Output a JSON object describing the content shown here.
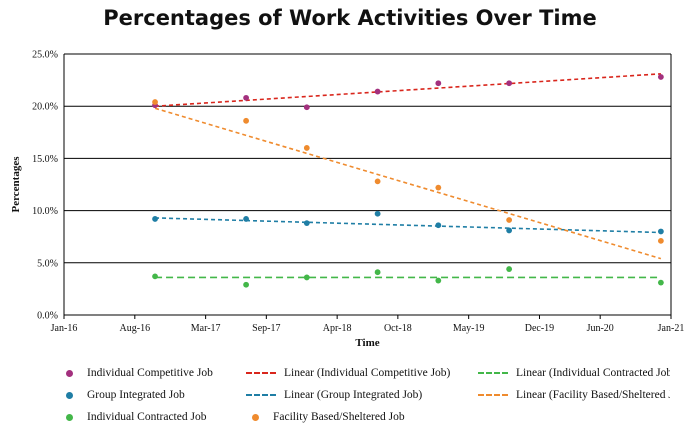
{
  "chart_data": {
    "type": "scatter",
    "title": "Percentages of Work Activities Over Time",
    "xlabel": "Time",
    "ylabel": "Percentages",
    "x_ticks": [
      "Jan-16",
      "Aug-16",
      "Mar-17",
      "Sep-17",
      "Apr-18",
      "Oct-18",
      "May-19",
      "Dec-19",
      "Jun-20",
      "Jan-21"
    ],
    "x_tick_months": [
      0,
      7,
      14,
      20,
      27,
      33,
      40,
      47,
      53,
      60
    ],
    "ylim": [
      0,
      25
    ],
    "y_ticks": [
      "0.0%",
      "5.0%",
      "10.0%",
      "15.0%",
      "20.0%",
      "25.0%"
    ],
    "y_tick_values": [
      0,
      5,
      10,
      15,
      20,
      25
    ],
    "grid": "horizontal",
    "legend_position": "bottom",
    "series": [
      {
        "name": "Individual Competitive Job",
        "color": "#a3307e",
        "points": [
          {
            "x": "Oct-16",
            "y": 20.1
          },
          {
            "x": "Jul-17",
            "y": 20.8
          },
          {
            "x": "Jan-18",
            "y": 19.9
          },
          {
            "x": "Aug-18",
            "y": 21.4
          },
          {
            "x": "Feb-19",
            "y": 22.2
          },
          {
            "x": "Sep-19",
            "y": 22.2
          },
          {
            "x": "Dec-20",
            "y": 22.8
          }
        ]
      },
      {
        "name": "Group Integrated Job",
        "color": "#1f7ea5",
        "points": [
          {
            "x": "Oct-16",
            "y": 9.2
          },
          {
            "x": "Jul-17",
            "y": 9.2
          },
          {
            "x": "Jan-18",
            "y": 8.8
          },
          {
            "x": "Aug-18",
            "y": 9.7
          },
          {
            "x": "Feb-19",
            "y": 8.6
          },
          {
            "x": "Sep-19",
            "y": 8.1
          },
          {
            "x": "Dec-20",
            "y": 8.0
          }
        ]
      },
      {
        "name": "Individual Contracted Job",
        "color": "#43b749",
        "points": [
          {
            "x": "Oct-16",
            "y": 3.7
          },
          {
            "x": "Jul-17",
            "y": 2.9
          },
          {
            "x": "Jan-18",
            "y": 3.6
          },
          {
            "x": "Aug-18",
            "y": 4.1
          },
          {
            "x": "Feb-19",
            "y": 3.3
          },
          {
            "x": "Sep-19",
            "y": 4.4
          },
          {
            "x": "Dec-20",
            "y": 3.1
          }
        ]
      },
      {
        "name": "Facility Based/Sheltered Job",
        "color": "#ef8b2e",
        "points": [
          {
            "x": "Oct-16",
            "y": 20.4
          },
          {
            "x": "Jul-17",
            "y": 18.6
          },
          {
            "x": "Jan-18",
            "y": 16.0
          },
          {
            "x": "Aug-18",
            "y": 12.8
          },
          {
            "x": "Feb-19",
            "y": 12.2
          },
          {
            "x": "Sep-19",
            "y": 9.1
          },
          {
            "x": "Dec-20",
            "y": 7.1
          }
        ]
      }
    ],
    "trendlines": [
      {
        "name": "Linear (Individual Competitive Job)",
        "color": "#d9261c",
        "x": [
          "Oct-16",
          "Dec-20"
        ],
        "y": [
          20.0,
          23.1
        ]
      },
      {
        "name": "Linear (Group Integrated Job)",
        "color": "#1f7ea5",
        "x": [
          "Oct-16",
          "Dec-20"
        ],
        "y": [
          9.3,
          7.9
        ]
      },
      {
        "name": "Linear (Individual Contracted Job)",
        "color": "#43b749",
        "x": [
          "Oct-16",
          "Dec-20"
        ],
        "y": [
          3.6,
          3.6
        ]
      },
      {
        "name": "Linear (Facility Based/Sheltered Job)",
        "color": "#ef8b2e",
        "x": [
          "Oct-16",
          "Dec-20"
        ],
        "y": [
          19.8,
          5.4
        ]
      }
    ]
  },
  "legend": {
    "items": [
      {
        "label": "Individual Competitive Job",
        "kind": "dot",
        "color": "#a3307e"
      },
      {
        "label": "Linear (Individual Competitive Job)",
        "kind": "line",
        "color": "#d9261c"
      },
      {
        "label": "Linear (Individual Contracted Job)",
        "kind": "line",
        "color": "#43b749"
      },
      {
        "label": "Group Integrated Job",
        "kind": "dot",
        "color": "#1f7ea5"
      },
      {
        "label": "Linear (Group Integrated Job)",
        "kind": "line",
        "color": "#1f7ea5"
      },
      {
        "label": "Linear (Facility Based/Sheltered Job)",
        "kind": "line",
        "color": "#ef8b2e"
      },
      {
        "label": "Individual Contracted Job",
        "kind": "dot",
        "color": "#43b749"
      },
      {
        "label": "Facility Based/Sheltered Job",
        "kind": "dot",
        "color": "#ef8b2e"
      }
    ]
  }
}
